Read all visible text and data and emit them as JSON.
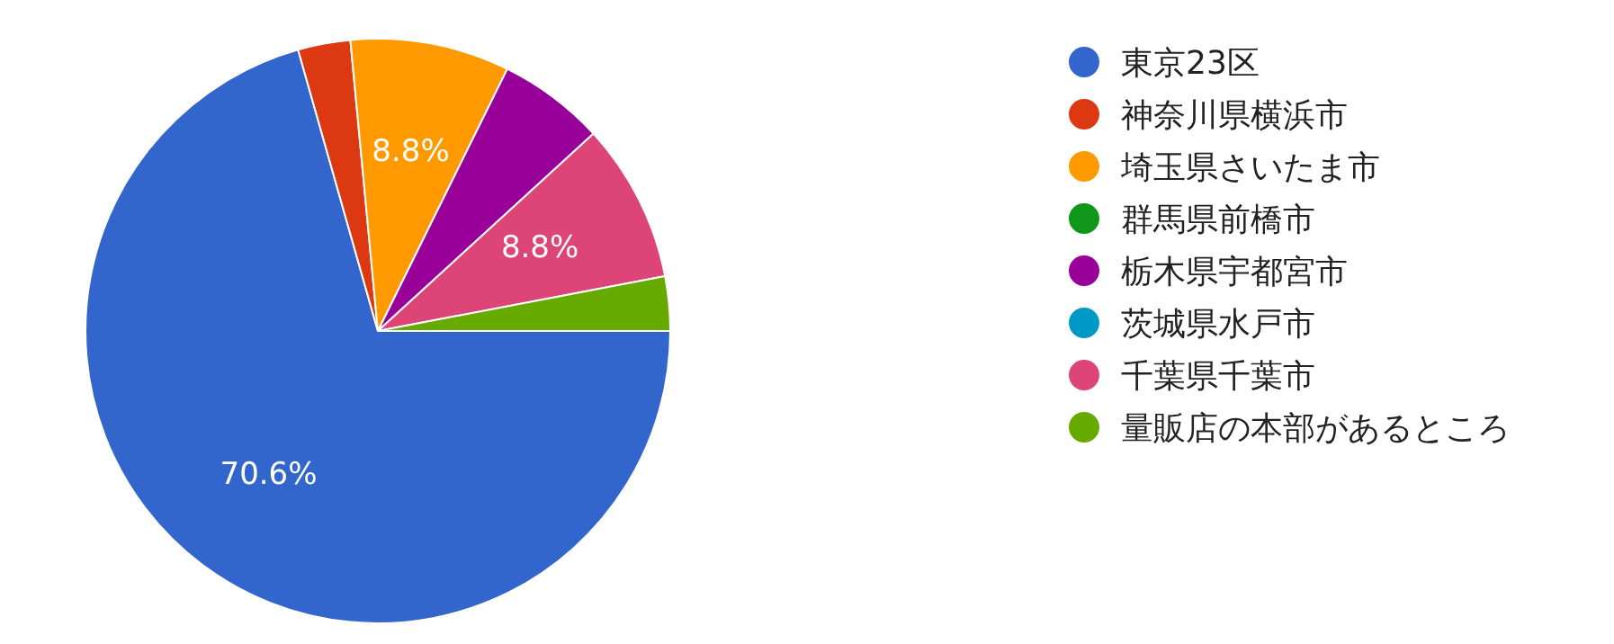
{
  "chart_data": {
    "type": "pie",
    "categories": [
      "東京23区",
      "神奈川県横浜市",
      "埼玉県さいたま市",
      "群馬県前橋市",
      "栃木県宇都宮市",
      "茨城県水戸市",
      "千葉県千葉市",
      "量販店の本部があるところ"
    ],
    "values": [
      70.6,
      2.9,
      8.8,
      0,
      5.9,
      0,
      8.8,
      3.0
    ],
    "colors": [
      "#3366cc",
      "#dc3912",
      "#ff9900",
      "#109618",
      "#990099",
      "#0099c6",
      "#dd4477",
      "#66aa00"
    ],
    "value_labels": [
      "70.6%",
      null,
      "8.8%",
      null,
      null,
      null,
      "8.8%",
      null
    ],
    "legend": "right"
  }
}
